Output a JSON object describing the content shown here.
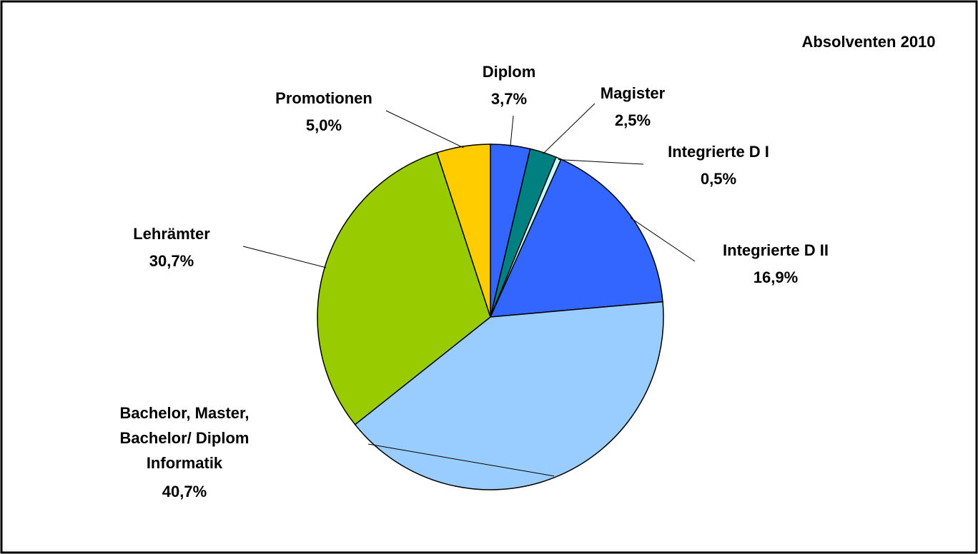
{
  "chart_data": {
    "type": "pie",
    "title": "Absolventen 2010",
    "categories": [
      "Diplom",
      "Magister",
      "Integrierte D I",
      "Integrierte D II",
      "Bachelor, Master,\nBachelor/ Diplom\nInformatik",
      "Lehrämter",
      "Promotionen"
    ],
    "values": [
      3.7,
      2.5,
      0.5,
      16.9,
      40.7,
      30.7,
      5.0
    ],
    "value_labels": [
      "3,7%",
      "2,5%",
      "0,5%",
      "16,9%",
      "40,7%",
      "30,7%",
      "5,0%"
    ],
    "colors": [
      "#3366ff",
      "#008080",
      "#ccffff",
      "#3366ff",
      "#99ccff",
      "#99cc00",
      "#ffcc00"
    ]
  }
}
